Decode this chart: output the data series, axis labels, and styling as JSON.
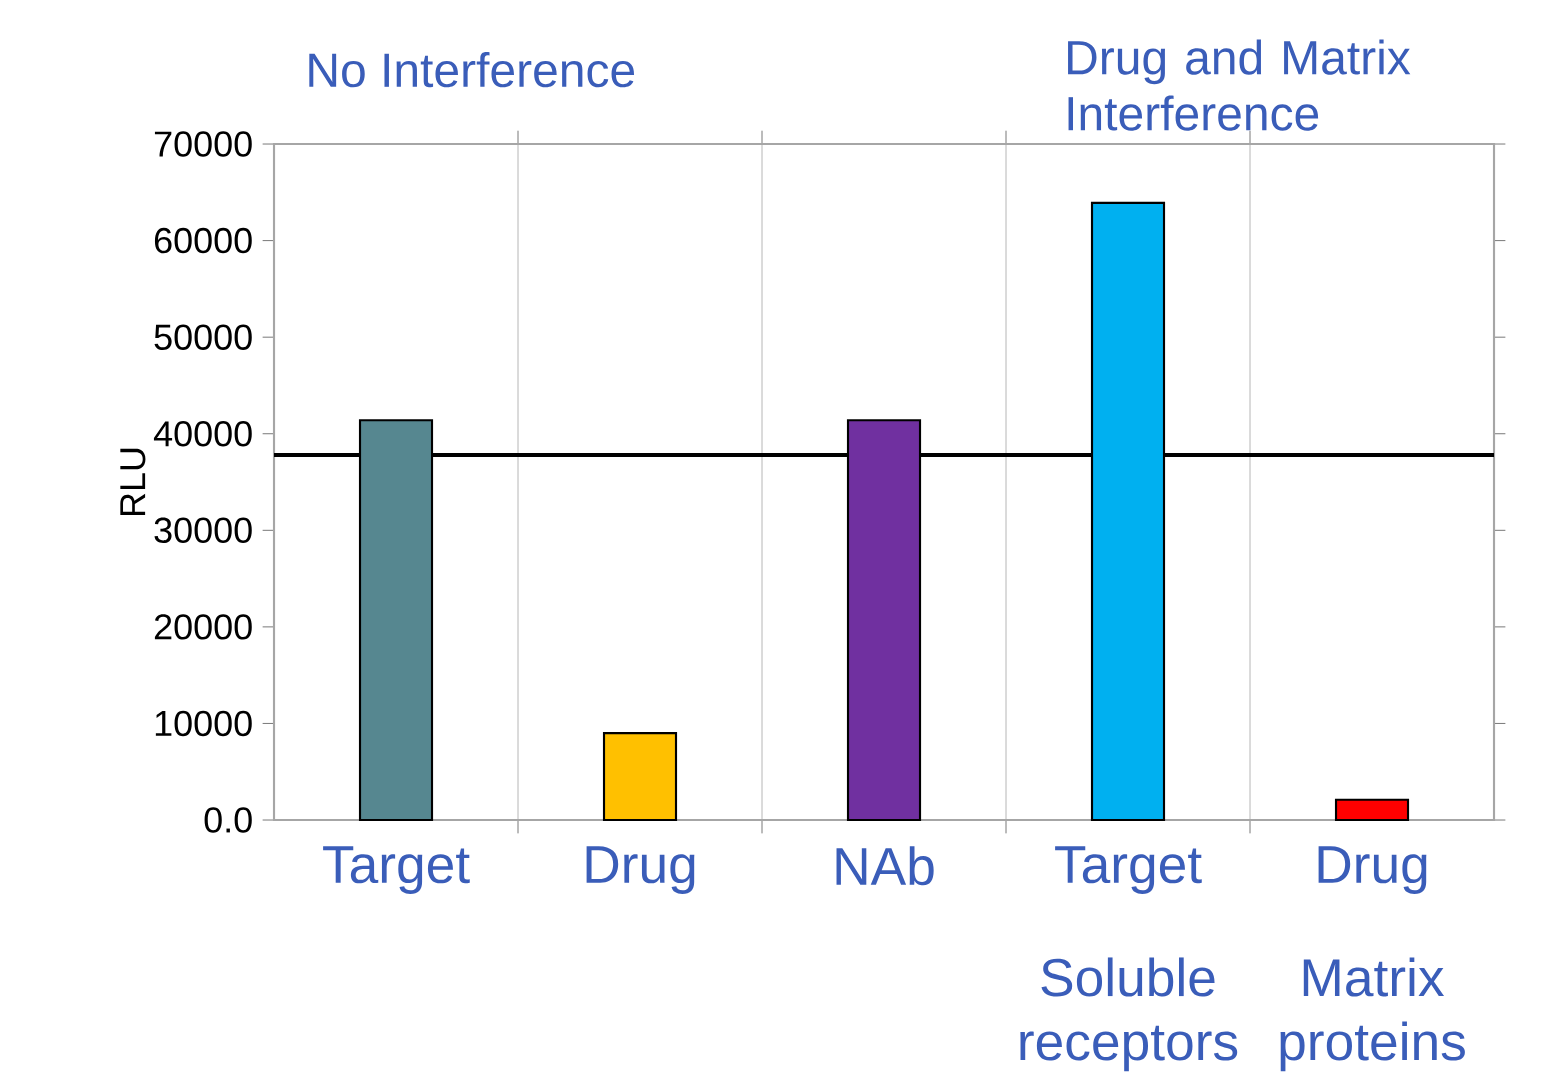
{
  "chart_data": {
    "type": "bar",
    "ylabel": "RLU",
    "categories": [
      "Target",
      "Drug",
      "NAb",
      "Target",
      "Drug"
    ],
    "values": [
      41400,
      9000,
      41400,
      63900,
      2100
    ],
    "colors": [
      "#568790",
      "#ffc000",
      "#7030a0",
      "#00b0f0",
      "#ff0000"
    ],
    "ylim": [
      0,
      70000
    ],
    "yticks": [
      {
        "value": 0,
        "label": "0.0"
      },
      10000,
      20000,
      30000,
      40000,
      50000,
      60000,
      70000
    ],
    "ref_lines": [
      {
        "axis": "y",
        "value": 37800,
        "color": "#000000"
      }
    ],
    "grid": "x",
    "annotations": [
      "No Interference",
      "Drug and Matrix Interference",
      "Soluble receptors",
      "Matrix proteins"
    ]
  }
}
